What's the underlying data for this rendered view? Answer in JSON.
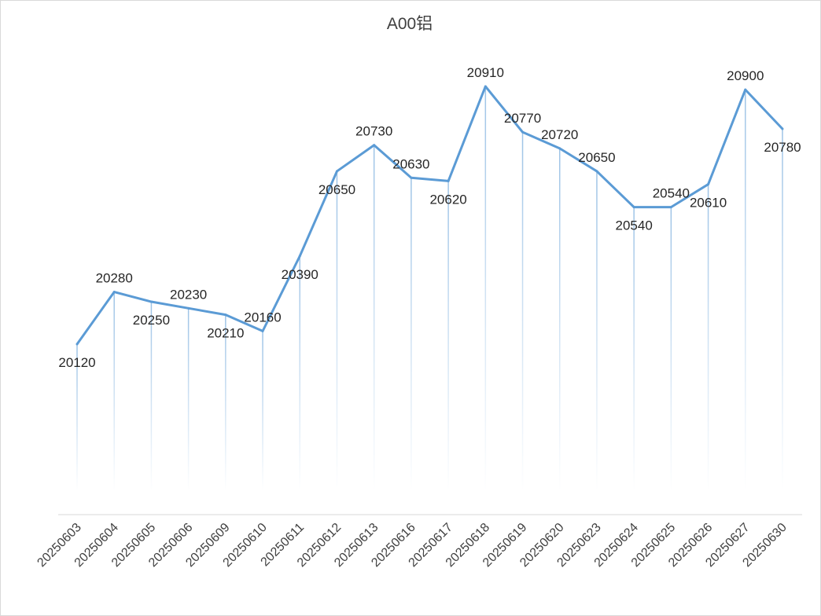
{
  "chart_data": {
    "type": "line",
    "title": "A00铝",
    "xlabel": "",
    "ylabel": "",
    "categories": [
      "20250603",
      "20250604",
      "20250605",
      "20250606",
      "20250609",
      "20250610",
      "20250611",
      "20250612",
      "20250613",
      "20250616",
      "20250617",
      "20250618",
      "20250619",
      "20250620",
      "20250623",
      "20250624",
      "20250625",
      "20250626",
      "20250627",
      "20250630"
    ],
    "series": [
      {
        "name": "A00铝",
        "values": [
          20120,
          20280,
          20250,
          20230,
          20210,
          20160,
          20390,
          20650,
          20730,
          20630,
          20620,
          20910,
          20770,
          20720,
          20650,
          20540,
          20540,
          20610,
          20900,
          20780
        ]
      }
    ],
    "label_positions": [
      "below",
      "above",
      "below",
      "above",
      "below",
      "above",
      "below",
      "below",
      "above",
      "above",
      "below",
      "above",
      "above",
      "above",
      "above",
      "below",
      "above",
      "below",
      "above",
      "below"
    ],
    "grid": false,
    "legend": "none",
    "colors": {
      "line": "#5b9bd5",
      "drop_line": "#9dc3e6",
      "axis": "#d9d9d9"
    }
  }
}
